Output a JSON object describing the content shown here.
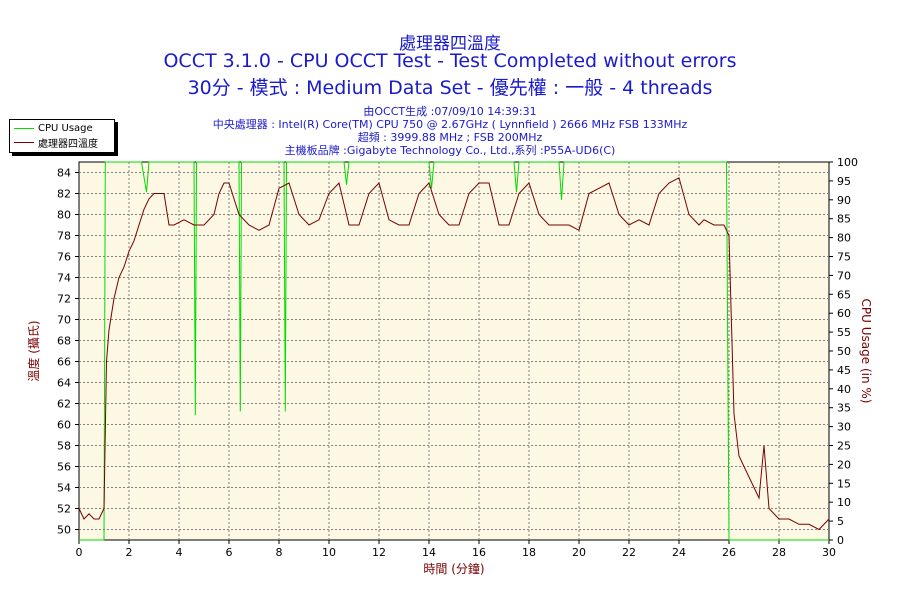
{
  "chart_data": {
    "type": "line",
    "title": "處理器四溫度",
    "subtitle_lines": [
      "OCCT 3.1.0 - CPU OCCT Test - Test Completed without errors",
      "30分 - 模式 : Medium Data Set - 優先權 : 一般 - 4 threads"
    ],
    "info_lines": [
      "由OCCT生成 :07/09/10 14:39:31",
      "中央處理器 : Intel(R) Core(TM) CPU 750 @ 2.67GHz ( Lynnfield ) 2666 MHz FSB 133MHz",
      "超頻 : 3999.88 MHz ; FSB 200MHz",
      "主機板品牌 :Gigabyte Technology Co., Ltd.,系列 :P55A-UD6(C)"
    ],
    "xlabel": "時間 (分鐘)",
    "ylabel_left": "溫度 (攝氏)",
    "ylabel_right": "CPU Usage (in %)",
    "xlim": [
      0,
      30
    ],
    "ylim_left": [
      49,
      85
    ],
    "ylim_right": [
      0,
      100
    ],
    "x_ticks": [
      0,
      2,
      4,
      6,
      8,
      10,
      12,
      14,
      16,
      18,
      20,
      22,
      24,
      26,
      28,
      30
    ],
    "y_left_ticks": [
      50,
      52,
      54,
      56,
      58,
      60,
      62,
      64,
      66,
      68,
      70,
      72,
      74,
      76,
      78,
      80,
      82,
      84
    ],
    "y_right_ticks": [
      0,
      5,
      10,
      15,
      20,
      25,
      30,
      35,
      40,
      45,
      50,
      55,
      60,
      65,
      70,
      75,
      80,
      85,
      90,
      95,
      100
    ],
    "grid": true,
    "legend_position": "top-left",
    "series": [
      {
        "name": "CPU Usage",
        "axis": "right",
        "color": "#00dd00",
        "x": [
          0,
          1.0,
          1.05,
          1.1,
          2.5,
          2.7,
          2.8,
          2.95,
          4.6,
          4.65,
          4.7,
          6.4,
          6.45,
          6.5,
          8.2,
          8.25,
          8.3,
          10.6,
          10.7,
          10.8,
          14.0,
          14.1,
          14.2,
          17.4,
          17.5,
          17.6,
          19.2,
          19.3,
          19.4,
          25.9,
          26.0,
          26.05,
          30
        ],
        "values": [
          0,
          0,
          100,
          100,
          100,
          92,
          100,
          100,
          100,
          33,
          100,
          100,
          34,
          100,
          100,
          34,
          100,
          100,
          94,
          100,
          100,
          93,
          100,
          100,
          92,
          100,
          100,
          90,
          100,
          100,
          0,
          0,
          0
        ]
      },
      {
        "name": "處理器四溫度",
        "axis": "left",
        "color": "#7a0000",
        "x": [
          0,
          0.2,
          0.4,
          0.6,
          0.8,
          1.0,
          1.1,
          1.2,
          1.4,
          1.6,
          1.8,
          2.0,
          2.2,
          2.4,
          2.6,
          2.8,
          3.0,
          3.4,
          3.6,
          3.8,
          4.2,
          4.6,
          5.0,
          5.4,
          5.6,
          5.8,
          6.0,
          6.4,
          6.8,
          7.2,
          7.6,
          8.0,
          8.4,
          8.8,
          9.2,
          9.6,
          10.0,
          10.4,
          10.8,
          11.2,
          11.6,
          12.0,
          12.4,
          12.8,
          13.2,
          13.6,
          14.0,
          14.4,
          14.8,
          15.2,
          15.6,
          16.0,
          16.4,
          16.8,
          17.2,
          17.6,
          18.0,
          18.4,
          18.8,
          19.2,
          19.6,
          20.0,
          20.4,
          20.8,
          21.2,
          21.6,
          22.0,
          22.4,
          22.8,
          23.2,
          23.6,
          24.0,
          24.4,
          24.8,
          25.0,
          25.4,
          25.8,
          26.0,
          26.2,
          26.4,
          26.8,
          27.2,
          27.4,
          27.6,
          28.0,
          28.4,
          28.8,
          29.2,
          29.6,
          30.0
        ],
        "values": [
          52,
          51,
          51.5,
          51,
          51,
          52,
          66,
          69,
          72,
          74,
          75,
          76.5,
          77.5,
          79,
          80.5,
          81.5,
          82,
          82,
          79,
          79,
          79.5,
          79,
          79,
          80,
          82,
          83,
          83,
          80,
          79,
          78.5,
          79,
          82.5,
          83,
          80,
          79,
          79.5,
          82,
          83,
          79,
          79,
          82,
          83,
          79.5,
          79,
          79,
          82,
          83,
          80,
          79,
          79,
          82,
          83,
          83,
          79,
          79,
          82,
          83,
          80,
          79,
          79,
          79,
          78.5,
          82,
          82.5,
          83,
          80,
          79,
          79.5,
          79,
          82,
          83,
          83.5,
          80,
          79,
          79.5,
          79,
          79,
          78,
          61,
          57,
          55,
          53,
          58,
          52,
          51,
          51,
          50.5,
          50.5,
          50,
          51
        ]
      }
    ]
  }
}
